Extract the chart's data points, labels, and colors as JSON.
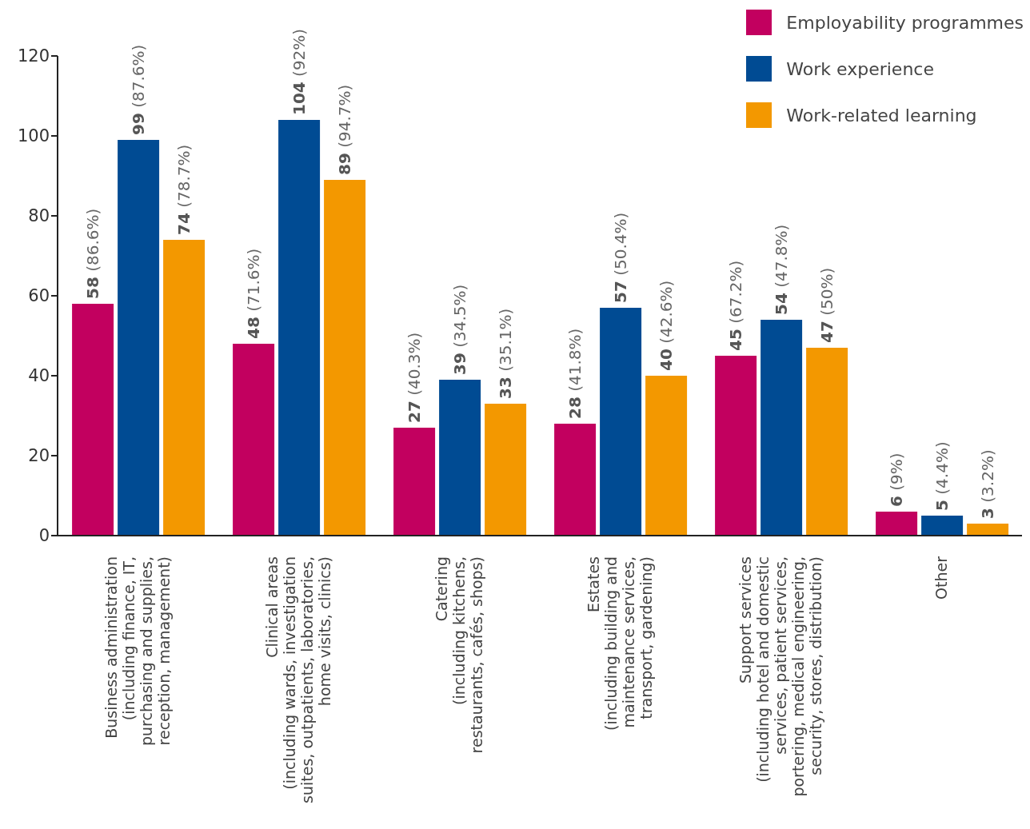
{
  "chart_data": {
    "type": "bar",
    "categories": [
      "Business administration\n(including finance, IT,\npurchasing and supplies,\nreception, management)",
      "Clinical areas\n(including wards, investigation\nsuites, outpatients, laboratories,\nhome visits, clinics)",
      "Catering\n(including kitchens,\nrestaurants, cafés, shops)",
      "Estates\n(including building and\nmaintenance services,\ntransport, gardening)",
      "Support services\n(including hotel and domestic\nservices, patient services,\nportering, medical engineering,\nsecurity, stores, distribution)",
      "Other"
    ],
    "series": [
      {
        "name": "Employability programmes",
        "color": "#c2005f",
        "values": [
          58,
          48,
          27,
          28,
          45,
          6
        ],
        "value_labels": [
          "58 (86.6%)",
          "48 (71.6%)",
          "27 (40.3%)",
          "28 (41.8%)",
          "45 (67.2%)",
          "6 (9%)"
        ]
      },
      {
        "name": "Work experience",
        "color": "#004b93",
        "values": [
          99,
          104,
          39,
          57,
          54,
          5
        ],
        "value_labels": [
          "99 (87.6%)",
          "104 (92%)",
          "39 (34.5%)",
          "57 (50.4%)",
          "54 (47.8%)",
          "5 (4.4%)"
        ]
      },
      {
        "name": "Work-related learning",
        "color": "#f39800",
        "values": [
          74,
          89,
          33,
          40,
          47,
          3
        ],
        "value_labels": [
          "74 (78.7%)",
          "89 (94.7%)",
          "33 (35.1%)",
          "40 (42.6%)",
          "47 (50%)",
          "3 (3.2%)"
        ]
      }
    ],
    "ylim": [
      0,
      120
    ],
    "yticks": [
      0,
      20,
      40,
      60,
      80,
      100,
      120
    ],
    "grid": false,
    "legend": "top right"
  }
}
